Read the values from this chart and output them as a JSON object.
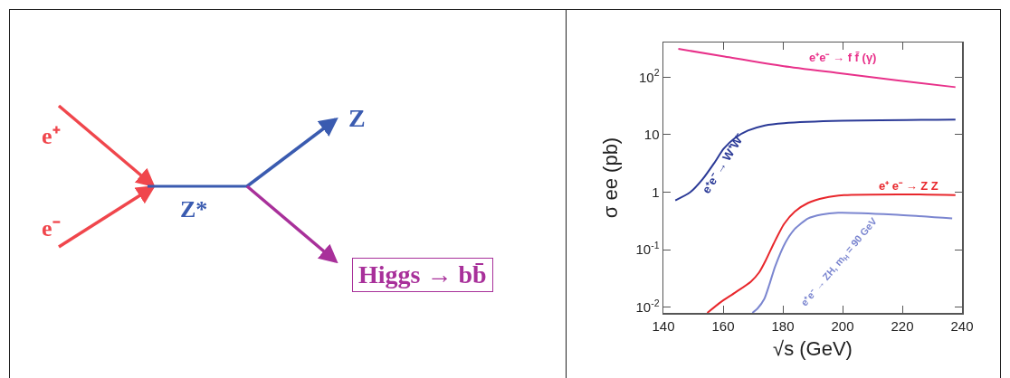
{
  "chart_data": [
    {
      "type": "other",
      "annotations": [
        "e⁺",
        "e⁻",
        "Z*",
        "Z",
        "Higgs → bb̄"
      ]
    },
    {
      "type": "line",
      "xlabel": "√s (GeV)",
      "ylabel": "σ ee (pb)",
      "log": "y",
      "grid": false,
      "legend": false,
      "marker": "none",
      "line_style": "solid",
      "xlim": [
        140,
        240
      ],
      "xticks": [
        140,
        160,
        180,
        200,
        220,
        240
      ],
      "ylim": [
        0.008,
        400
      ],
      "yticks": [
        {
          "value": 0.01,
          "label": "10$^{-2}$"
        },
        {
          "value": 0.1,
          "label": "10$^{-1}$"
        },
        1,
        10,
        {
          "value": 100,
          "label": "10$^{2}$"
        }
      ],
      "series": [
        {
          "name": "e⁺e⁻ → f f̄ (γ)",
          "color": "#e8318a",
          "x": [
            145,
            160,
            180.4,
            198.5,
            218,
            237.8
          ],
          "values": [
            310,
            230,
            155,
            118,
            88,
            67
          ]
        },
        {
          "name": "e⁺e⁻ → W⁺W⁻",
          "color": "#2b3a97",
          "x": [
            144,
            149,
            153.2,
            157,
            160.2,
            164,
            168.3,
            174,
            180.4,
            200,
            237.8
          ],
          "values": [
            0.72,
            1.0,
            1.7,
            3.2,
            5.7,
            8.8,
            11.8,
            14.5,
            15.9,
            17.5,
            18.3
          ]
        },
        {
          "name": "e⁺ e⁻ → Z Z",
          "color": "#e8272c",
          "x": [
            154.7,
            159.2,
            164,
            169.3,
            172,
            174.3,
            177,
            180.4,
            184,
            188.4,
            194,
            200.5,
            220,
            237.8
          ],
          "values": [
            0.008,
            0.0123,
            0.018,
            0.028,
            0.04,
            0.066,
            0.13,
            0.28,
            0.46,
            0.65,
            0.8,
            0.89,
            0.92,
            0.89
          ]
        },
        {
          "name": "e⁺e⁻ → ZH, m$_{H}$ = 90 GeV",
          "color": "#7b86d0",
          "x": [
            169.8,
            171.5,
            173.8,
            175.5,
            177.4,
            180.9,
            184,
            188.4,
            193,
            198.5,
            216.8,
            236.7
          ],
          "values": [
            0.008,
            0.0095,
            0.014,
            0.025,
            0.051,
            0.135,
            0.23,
            0.35,
            0.41,
            0.44,
            0.41,
            0.35
          ]
        }
      ]
    }
  ]
}
